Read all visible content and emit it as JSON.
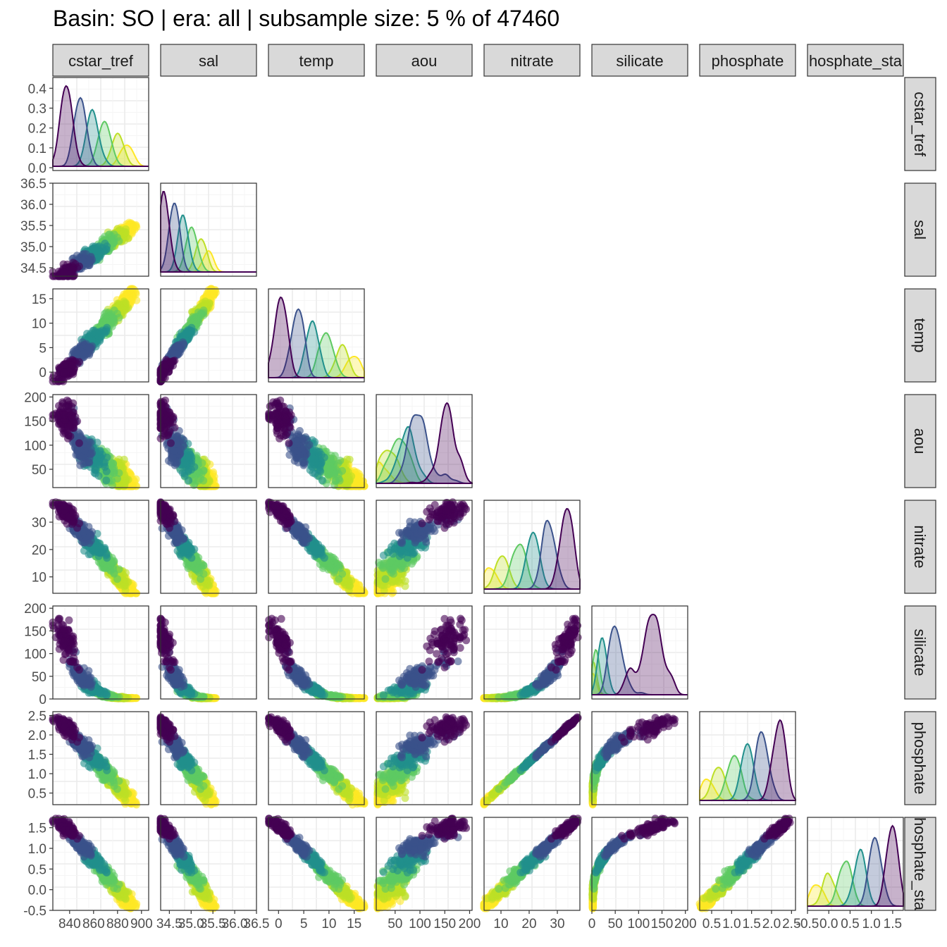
{
  "title": "Basin: SO | era: all | subsample size: 5 % of 47460",
  "colors": {
    "panel_border": "#333333",
    "strip_fill": "#d9d9d9",
    "grid_major": "#ebebeb",
    "grid_minor": "#f5f5f5",
    "palette": [
      "#440154",
      "#3b528b",
      "#21908c",
      "#5ec962",
      "#bddf26",
      "#fde725"
    ]
  },
  "chart_data": {
    "type": "scatter",
    "layout": "pairs-matrix (lower triangle scatter, diagonal density)",
    "variables": [
      "cstar_tref",
      "sal",
      "temp",
      "aou",
      "nitrate",
      "silicate",
      "phosphate",
      "phosphate_star"
    ],
    "strip_labels_top": [
      "cstar_tref",
      "sal",
      "temp",
      "aou",
      "nitrate",
      "silicate",
      "phosphate",
      "hosphate_sta"
    ],
    "strip_labels_right": [
      "cstar_tref",
      "sal",
      "temp",
      "aou",
      "nitrate",
      "silicate",
      "phosphate",
      "hosphate_sta"
    ],
    "ranges": {
      "cstar_tref": [
        826,
        906
      ],
      "sal": [
        34.3,
        36.5
      ],
      "temp": [
        -2,
        17
      ],
      "aou": [
        12,
        205
      ],
      "nitrate": [
        4,
        38
      ],
      "silicate": [
        0,
        205
      ],
      "phosphate": [
        0.2,
        2.6
      ],
      "phosphate_star": [
        -0.5,
        1.75
      ]
    },
    "x_ticks": [
      [
        "840",
        "860",
        "880",
        "900"
      ],
      [
        "34.5",
        "35.0",
        "35.5",
        "36.0",
        "36.5"
      ],
      [
        "0",
        "5",
        "10",
        "15"
      ],
      [
        "50",
        "100",
        "150",
        "200"
      ],
      [
        "10",
        "20",
        "30"
      ],
      [
        "0",
        "50",
        "100",
        "150",
        "200"
      ],
      [
        "0.5",
        "1.0",
        "1.5",
        "2.0",
        "2.5"
      ],
      [
        "-0.5",
        "0.0",
        "0.5",
        "1.0",
        "1.5"
      ]
    ],
    "y_ticks": [
      [
        "0.0",
        "0.1",
        "0.2",
        "0.3",
        "0.4"
      ],
      [
        "34.5",
        "35.0",
        "35.5",
        "36.0",
        "36.5"
      ],
      [
        "0",
        "5",
        "10",
        "15"
      ],
      [
        "50",
        "100",
        "150",
        "200"
      ],
      [
        "10",
        "20",
        "30"
      ],
      [
        "0",
        "50",
        "100",
        "150",
        "200"
      ],
      [
        "0.5",
        "1.0",
        "1.5",
        "2.0",
        "2.5"
      ],
      [
        "-0.5",
        "0.0",
        "0.5",
        "1.0",
        "1.5"
      ]
    ],
    "density_ymax": 0.44,
    "grid": true,
    "legend": "none",
    "color_groups": 6
  }
}
